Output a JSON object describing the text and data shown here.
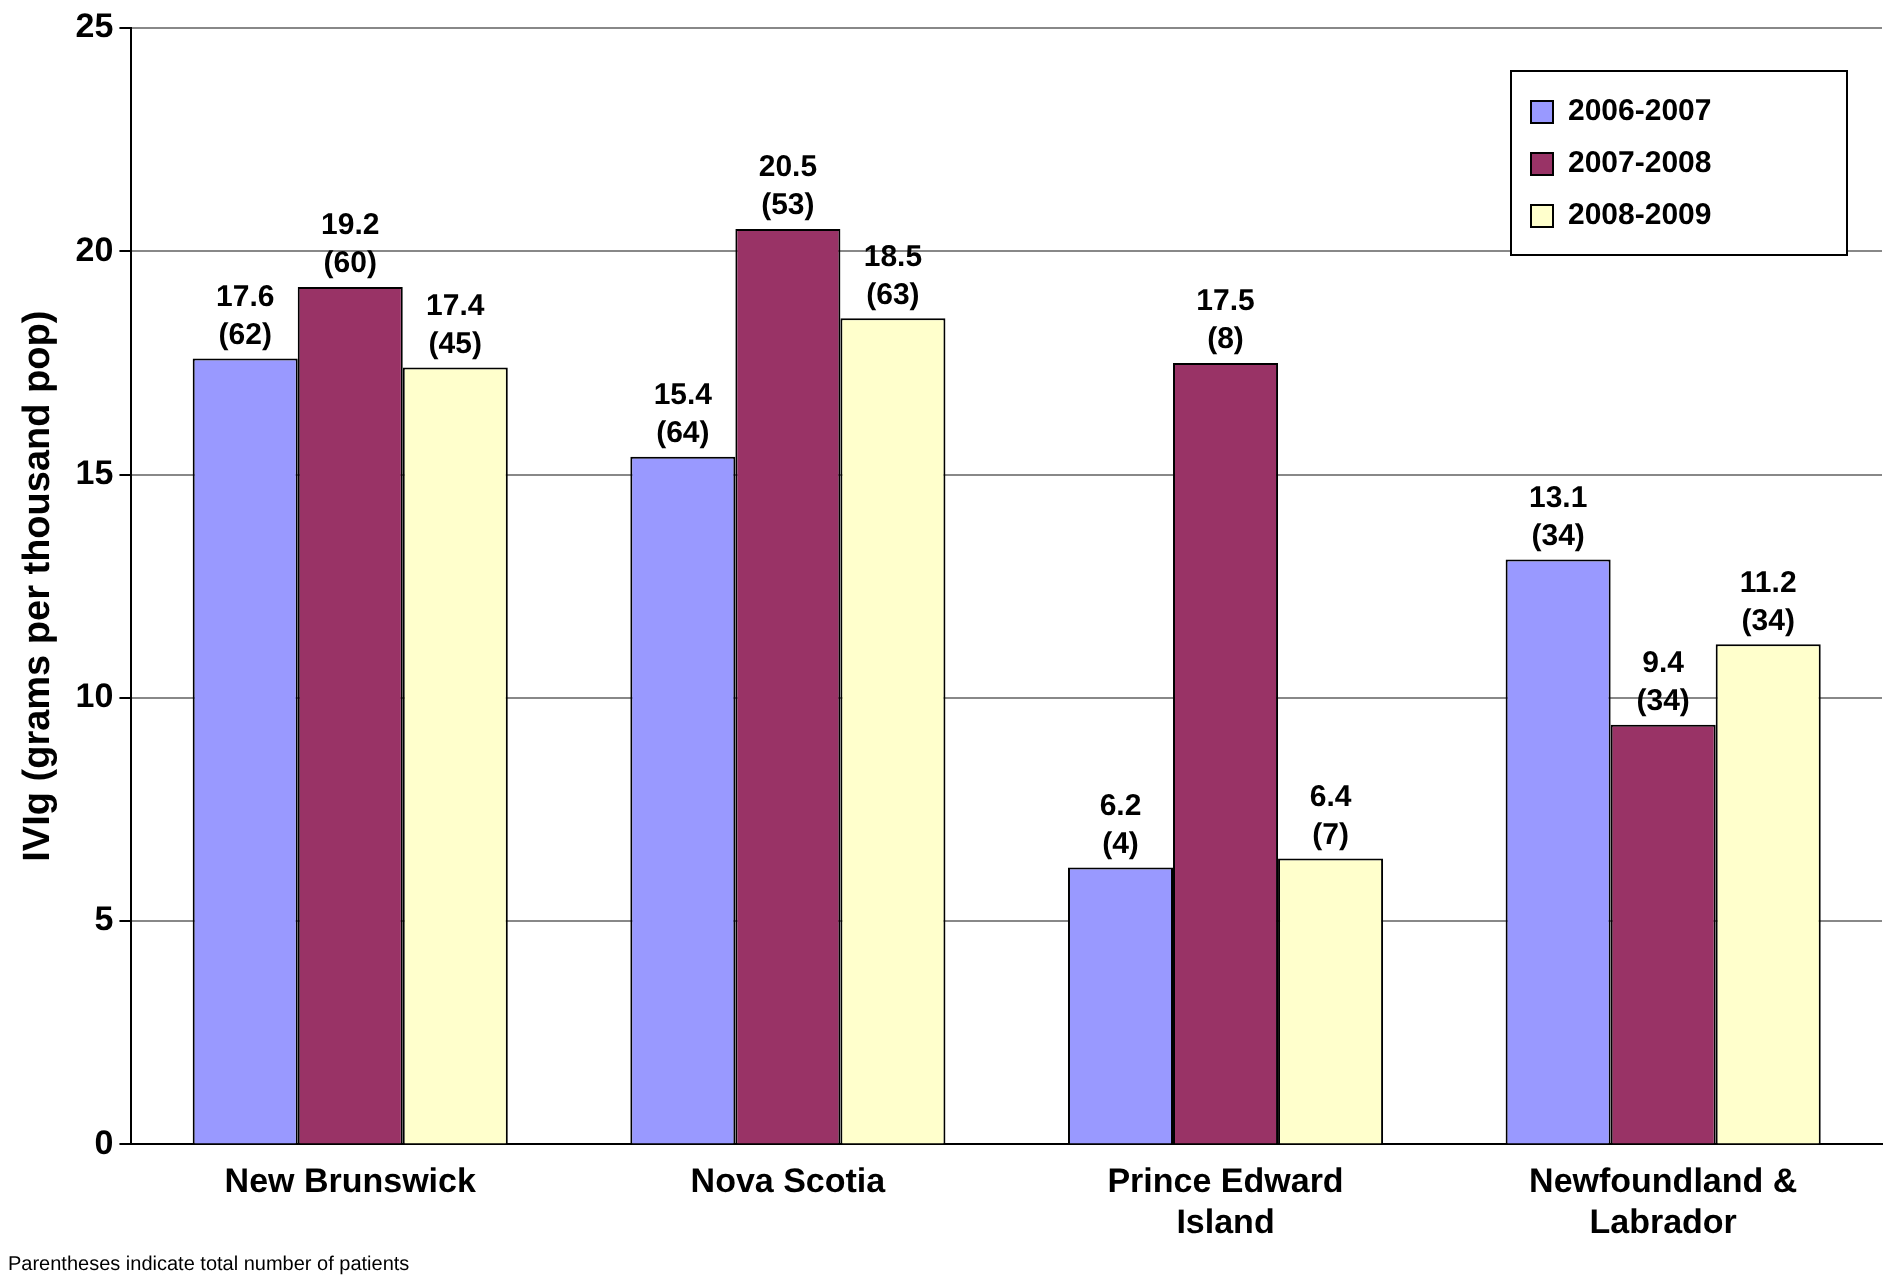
{
  "chart_data": {
    "type": "bar",
    "ylabel": "IVIg (grams per thousand pop)",
    "categories": [
      "New Brunswick",
      "Nova Scotia",
      "Prince Edward Island",
      "Newfoundland & Labrador"
    ],
    "series": [
      {
        "name": "2006-2007",
        "color": "#9999ff",
        "values": [
          17.6,
          15.4,
          6.2,
          13.1
        ],
        "value_labels": [
          "17.6 (62)",
          "15.4 (64)",
          "6.2 (4)",
          "13.1 (34)"
        ]
      },
      {
        "name": "2007-2008",
        "color": "#993366",
        "values": [
          19.2,
          20.5,
          17.5,
          9.4
        ],
        "value_labels": [
          "19.2 (60)",
          "20.5 (53)",
          "17.5 (8)",
          "9.4 (34)"
        ]
      },
      {
        "name": "2008-2009",
        "color": "#ffffcc",
        "values": [
          17.4,
          18.5,
          6.4,
          11.2
        ],
        "value_labels": [
          "17.4 (45)",
          "18.5 (63)",
          "6.4 (7)",
          "11.2 (34)"
        ]
      }
    ],
    "ylim": [
      0,
      25
    ],
    "yticks": [
      0,
      5,
      10,
      15,
      20,
      25
    ],
    "grid": "y",
    "legend": "top right",
    "annotations": [
      "Parentheses indicate total number of patients"
    ]
  }
}
